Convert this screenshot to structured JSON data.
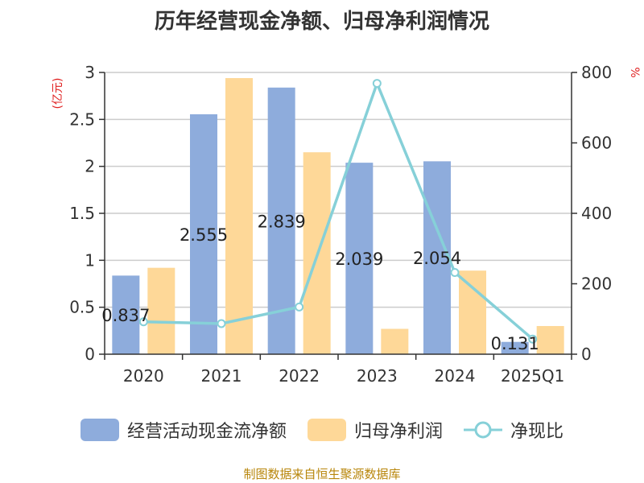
{
  "colors": {
    "bar1": "#8eacdc",
    "bar2": "#fed898",
    "line": "#86d0d8",
    "unit_text": "#e02020",
    "source_text": "#b8860b"
  },
  "chart_data": {
    "type": "bar",
    "title": "历年经营现金净额、归母净利润情况",
    "categories": [
      "2020",
      "2021",
      "2022",
      "2023",
      "2024",
      "2025Q1"
    ],
    "series": [
      {
        "name": "经营活动现金流净额",
        "type": "bar",
        "axis": "left",
        "values": [
          0.837,
          2.555,
          2.839,
          2.039,
          2.054,
          0.131
        ],
        "labels": [
          "0.837",
          "2.555",
          "2.839",
          "2.039",
          "2.054",
          "0.131"
        ]
      },
      {
        "name": "归母净利润",
        "type": "bar",
        "axis": "left",
        "values": [
          0.92,
          2.94,
          2.15,
          0.27,
          0.89,
          0.3
        ]
      },
      {
        "name": "净现比",
        "type": "line",
        "axis": "right",
        "values": [
          92,
          87,
          134,
          769,
          232,
          43
        ]
      }
    ],
    "ylabel_left": "(亿元)",
    "ylabel_right": "%",
    "ylim_left": [
      0,
      3
    ],
    "ylim_right": [
      0,
      800
    ],
    "yticks_left": [
      "0",
      "0.5",
      "1",
      "1.5",
      "2",
      "2.5",
      "3"
    ],
    "yticks_right": [
      "0",
      "200",
      "400",
      "600",
      "800"
    ],
    "grid": true,
    "legend_position": "bottom"
  },
  "source": "制图数据来自恒生聚源数据库"
}
